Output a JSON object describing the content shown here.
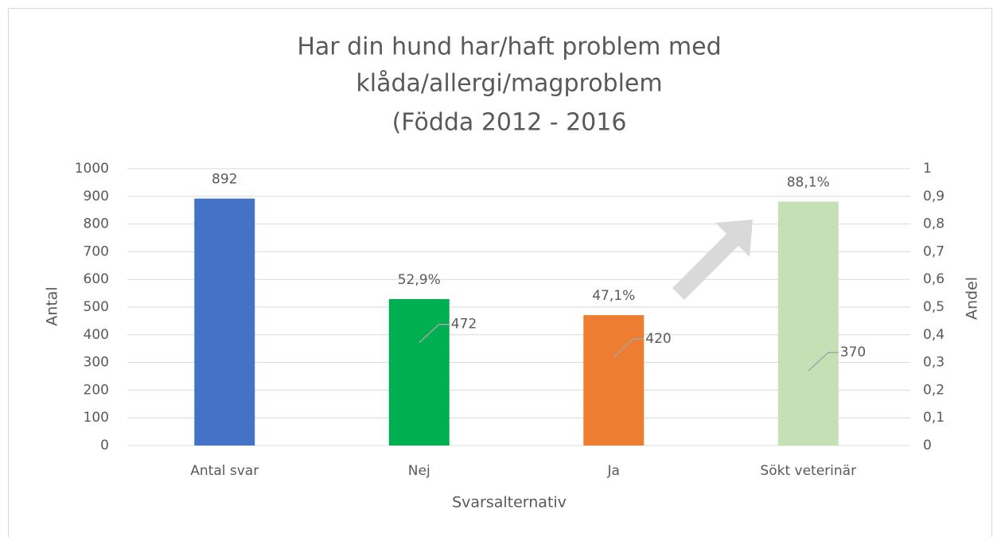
{
  "chart_data": {
    "type": "bar",
    "title": [
      "Har din hund har/haft problem med",
      "klåda/allergi/magproblem",
      "(Födda 2012 - 2016"
    ],
    "x_label": "Svarsalternativ",
    "y_label": "Antal",
    "y2_label": "Andel",
    "categories": [
      "Antal svar",
      "Nej",
      "Ja",
      "Sökt veterinär"
    ],
    "series": [
      {
        "axis": "y",
        "values": [
          892,
          472,
          420,
          370
        ],
        "colors": [
          "#4472c4",
          "transparent",
          "transparent",
          "transparent"
        ]
      },
      {
        "axis": "y2",
        "values": [
          null,
          0.529,
          0.471,
          0.881
        ],
        "value_labels": [
          null,
          "52,9%",
          "47,1%",
          "88,1%"
        ],
        "colors": [
          null,
          "#00b050",
          "#ed7d31",
          "#c5e0b4"
        ]
      }
    ],
    "ylim": [
      0,
      1000
    ],
    "yticks": [
      0,
      100,
      200,
      300,
      400,
      500,
      600,
      700,
      800,
      900,
      1000
    ],
    "y2lim": [
      0,
      1
    ],
    "y2ticks": [
      0,
      {
        "value": 0.1,
        "label": "0,1"
      },
      {
        "value": 0.2,
        "label": "0,2"
      },
      {
        "value": 0.3,
        "label": "0,3"
      },
      {
        "value": 0.4,
        "label": "0,4"
      },
      {
        "value": 0.5,
        "label": "0,5"
      },
      {
        "value": 0.6,
        "label": "0,6"
      },
      {
        "value": 0.7,
        "label": "0,7"
      },
      {
        "value": 0.8,
        "label": "0,8"
      },
      {
        "value": 0.9,
        "label": "0,9"
      },
      1
    ],
    "grid": true
  }
}
